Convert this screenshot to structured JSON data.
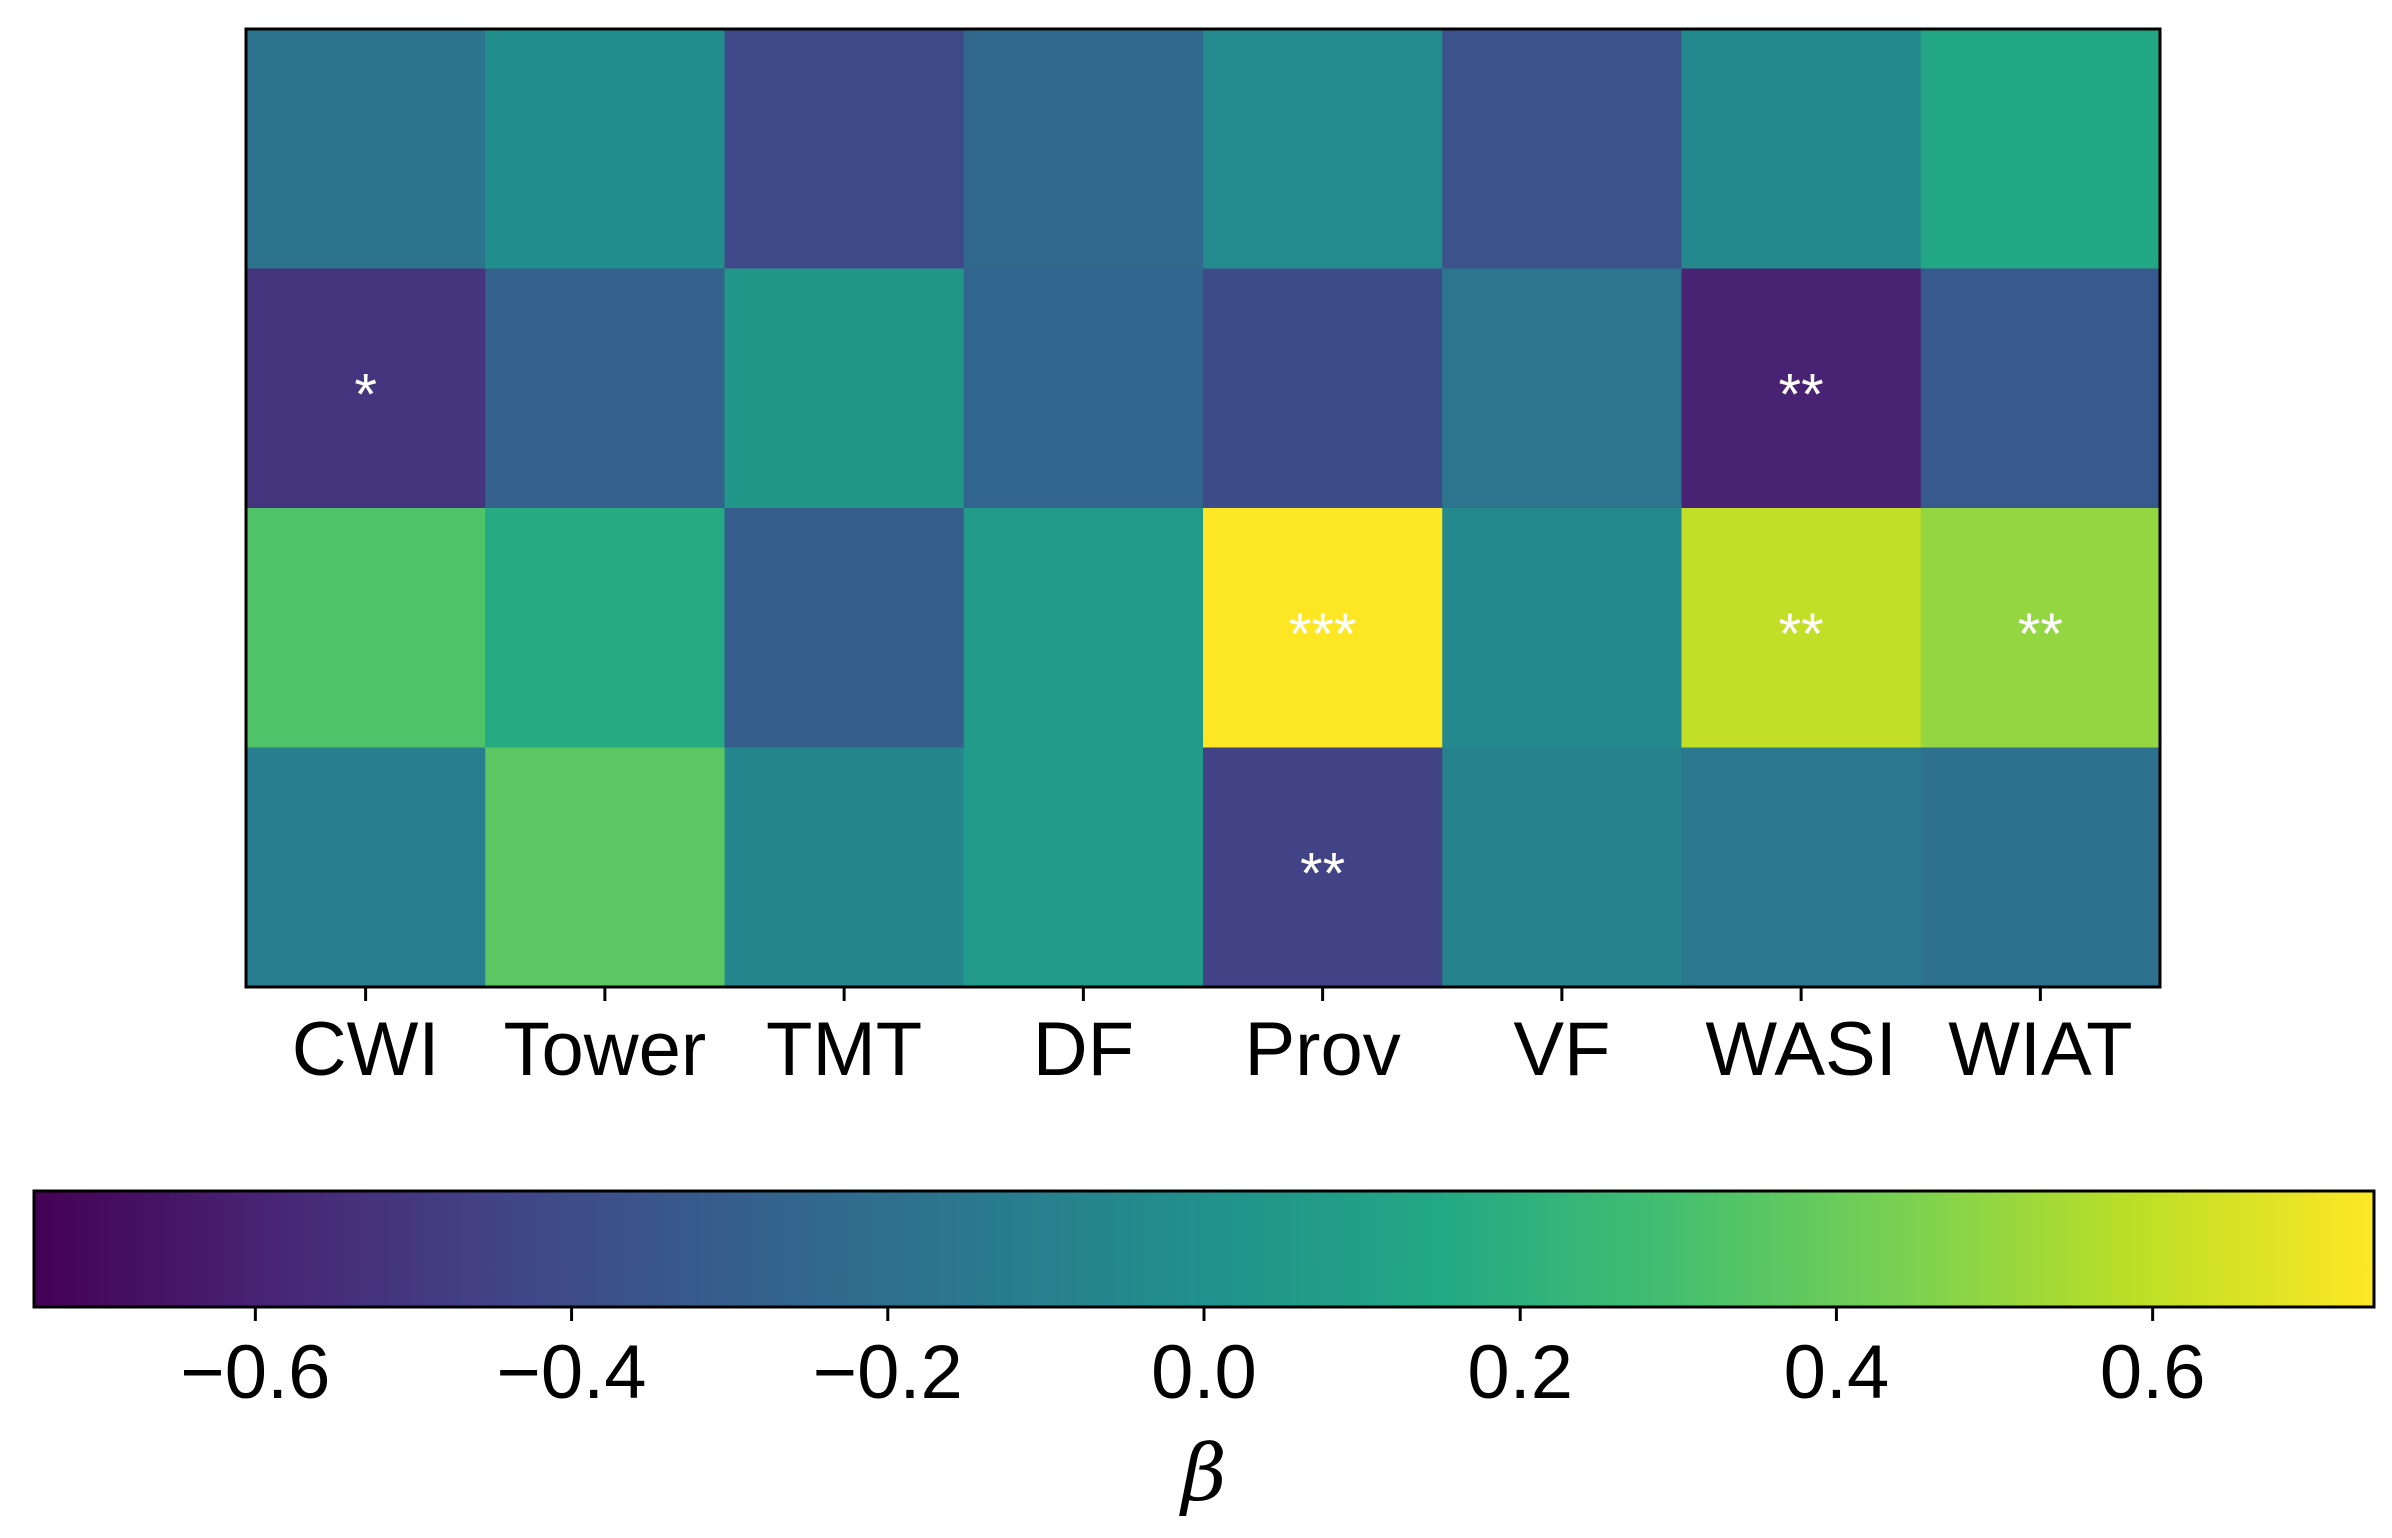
{
  "chart_data": {
    "type": "heatmap",
    "columns": [
      "CWI",
      "Tower",
      "TMT",
      "DF",
      "Prov",
      "VF",
      "WASI",
      "WIAT"
    ],
    "rows": 4,
    "values": [
      [
        -0.18,
        -0.02,
        -0.42,
        -0.24,
        -0.04,
        -0.37,
        -0.05,
        0.14
      ],
      [
        -0.52,
        -0.28,
        0.04,
        -0.26,
        -0.4,
        -0.16,
        -0.6,
        -0.33
      ],
      [
        0.33,
        0.16,
        -0.3,
        0.06,
        0.74,
        -0.05,
        0.6,
        0.5
      ],
      [
        -0.12,
        0.36,
        -0.06,
        0.06,
        -0.45,
        -0.08,
        -0.14,
        -0.19
      ]
    ],
    "annotations": [
      [
        "",
        "",
        "",
        "",
        "",
        "",
        "",
        ""
      ],
      [
        "*",
        "",
        "",
        "",
        "",
        "",
        "**",
        ""
      ],
      [
        "",
        "",
        "",
        "",
        "***",
        "",
        "**",
        "**"
      ],
      [
        "",
        "",
        "",
        "",
        "**",
        "",
        "",
        ""
      ]
    ],
    "colormap": "viridis",
    "colorbar": {
      "label": "β",
      "vmin": -0.74,
      "vmax": 0.74,
      "ticks": [
        -0.6,
        -0.4,
        -0.2,
        0.0,
        0.2,
        0.4,
        0.6
      ],
      "tick_labels": [
        "−0.6",
        "−0.4",
        "−0.2",
        "0.0",
        "0.2",
        "0.4",
        "0.6"
      ],
      "orientation": "horizontal"
    },
    "title": "",
    "xlabel": "",
    "ylabel": ""
  }
}
